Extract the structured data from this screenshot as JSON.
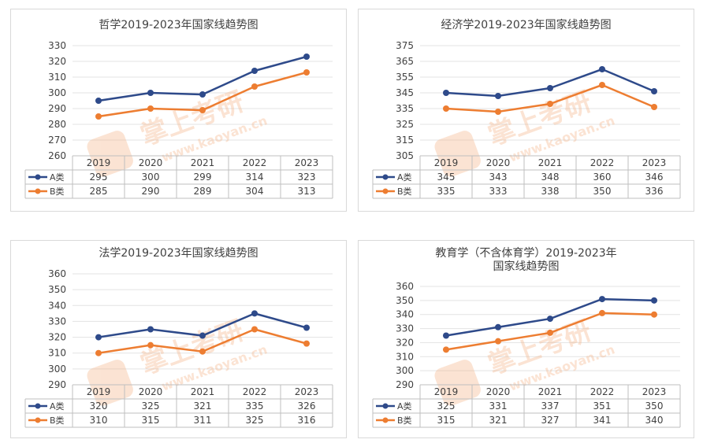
{
  "chart_data": [
    {
      "type": "line",
      "title": "哲学2019-2023年国家线趋势图",
      "categories": [
        "2019",
        "2020",
        "2021",
        "2022",
        "2023"
      ],
      "yticks": [
        260,
        270,
        280,
        290,
        300,
        310,
        320,
        330
      ],
      "ylim": [
        260,
        330
      ],
      "series": [
        {
          "name": "A类",
          "color": "#2e4a8a",
          "values": [
            295,
            300,
            299,
            314,
            323
          ]
        },
        {
          "name": "B类",
          "color": "#ed7d31",
          "values": [
            285,
            290,
            289,
            304,
            313
          ]
        }
      ]
    },
    {
      "type": "line",
      "title": "经济学2019-2023年国家线趋势图",
      "categories": [
        "2019",
        "2020",
        "2021",
        "2022",
        "2023"
      ],
      "yticks": [
        305,
        315,
        325,
        335,
        345,
        355,
        365,
        375
      ],
      "ylim": [
        305,
        375
      ],
      "series": [
        {
          "name": "A类",
          "color": "#2e4a8a",
          "values": [
            345,
            343,
            348,
            360,
            346
          ]
        },
        {
          "name": "B类",
          "color": "#ed7d31",
          "values": [
            335,
            333,
            338,
            350,
            336
          ]
        }
      ]
    },
    {
      "type": "line",
      "title": "法学2019-2023年国家线趋势图",
      "categories": [
        "2019",
        "2020",
        "2021",
        "2022",
        "2023"
      ],
      "yticks": [
        290,
        300,
        310,
        320,
        330,
        340,
        350,
        360
      ],
      "ylim": [
        290,
        360
      ],
      "series": [
        {
          "name": "A类",
          "color": "#2e4a8a",
          "values": [
            320,
            325,
            321,
            335,
            326
          ]
        },
        {
          "name": "B类",
          "color": "#ed7d31",
          "values": [
            310,
            315,
            311,
            325,
            316
          ]
        }
      ]
    },
    {
      "type": "line",
      "title": "教育学（不含体育学）2019-2023年",
      "title_line2": "国家线趋势图",
      "categories": [
        "2019",
        "2020",
        "2021",
        "2022",
        "2023"
      ],
      "yticks": [
        290,
        300,
        310,
        320,
        330,
        340,
        350,
        360
      ],
      "ylim": [
        290,
        360
      ],
      "series": [
        {
          "name": "A类",
          "color": "#2e4a8a",
          "values": [
            325,
            331,
            337,
            351,
            350
          ]
        },
        {
          "name": "B类",
          "color": "#ed7d31",
          "values": [
            315,
            321,
            327,
            341,
            340
          ]
        }
      ]
    }
  ],
  "watermark": {
    "text": "掌上考研",
    "url": "www.kaoyan.cn",
    "color": "#f4b183"
  }
}
